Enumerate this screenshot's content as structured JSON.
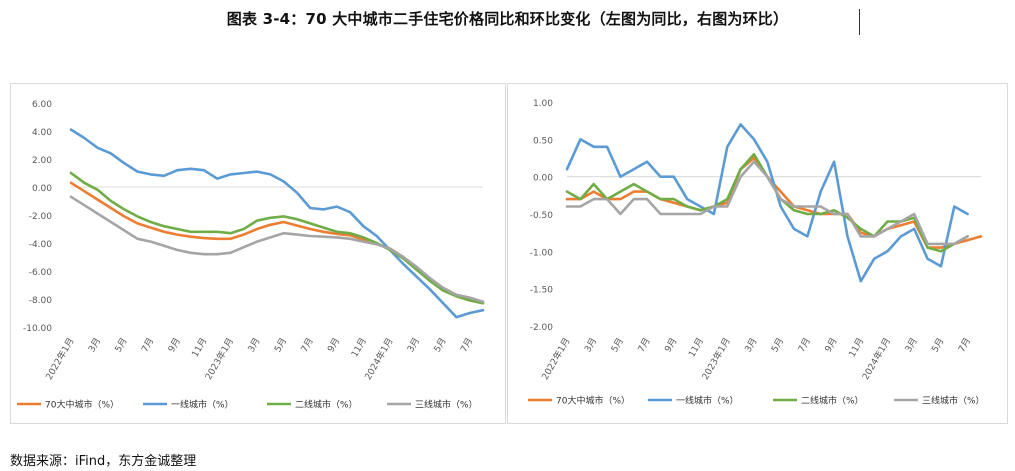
{
  "title": "图表 3-4：70 大中城市二手住宅价格同比和环比变化（左图为同比，右图为环比）",
  "source": "数据来源：iFind，东方金诚整理",
  "colors": {
    "s70": "#ed7d31",
    "s1": "#5b9bd5",
    "s2": "#70ad47",
    "s3": "#a5a5a5",
    "axis": "#d9d9d9",
    "text": "#595959"
  },
  "chart_data": [
    {
      "type": "line",
      "categories": [
        "2022年1月",
        "2022-02",
        "3月",
        "2022-04",
        "5月",
        "2022-06",
        "7月",
        "2022-08",
        "9月",
        "2022-10",
        "11月",
        "2022-12",
        "2023年1月",
        "2023-02",
        "3月",
        "2023-04",
        "5月",
        "2023-06",
        "7月",
        "2023-08",
        "9月",
        "2023-10",
        "11月",
        "2023-12",
        "2024年1月",
        "2024-02",
        "3月",
        "2024-04",
        "5月",
        "2024-06",
        "7月",
        "2024-08"
      ],
      "tick_labels": [
        "2022年1月",
        "3月",
        "5月",
        "7月",
        "9月",
        "11月",
        "2023年1月",
        "3月",
        "5月",
        "7月",
        "9月",
        "11月",
        "2024年1月",
        "3月",
        "5月",
        "7月"
      ],
      "y_tick_labels": [
        "6.00",
        "4.00",
        "2.00",
        "0.00",
        "-2.00",
        "-4.00",
        "-6.00",
        "-8.00",
        "-10.00"
      ],
      "ylim": [
        -10,
        6
      ],
      "series": [
        {
          "name": "70大中城市（%）",
          "color_key": "s70",
          "values": [
            0.3,
            -0.3,
            -0.9,
            -1.5,
            -2.1,
            -2.6,
            -2.9,
            -3.2,
            -3.4,
            -3.55,
            -3.65,
            -3.7,
            -3.7,
            -3.4,
            -3.0,
            -2.7,
            -2.5,
            -2.75,
            -3.0,
            -3.2,
            -3.35,
            -3.45,
            -3.75,
            -4.05,
            -4.4,
            -5.0,
            -5.8,
            -6.6,
            -7.3,
            -7.8,
            -8.1,
            -8.3
          ]
        },
        {
          "name": "一线城市（%）",
          "color_key": "s1",
          "values": [
            4.1,
            3.5,
            2.8,
            2.4,
            1.7,
            1.1,
            0.9,
            0.8,
            1.2,
            1.3,
            1.2,
            0.6,
            0.9,
            1.0,
            1.1,
            0.9,
            0.4,
            -0.4,
            -1.5,
            -1.6,
            -1.4,
            -1.8,
            -2.8,
            -3.5,
            -4.5,
            -5.5,
            -6.4,
            -7.3,
            -8.3,
            -9.3,
            -9.0,
            -8.8
          ]
        },
        {
          "name": "二线城市（%）",
          "color_key": "s2",
          "values": [
            1.0,
            0.3,
            -0.2,
            -1.0,
            -1.6,
            -2.1,
            -2.5,
            -2.8,
            -3.0,
            -3.2,
            -3.2,
            -3.2,
            -3.3,
            -3.0,
            -2.4,
            -2.2,
            -2.1,
            -2.3,
            -2.6,
            -2.9,
            -3.2,
            -3.3,
            -3.6,
            -4.0,
            -4.5,
            -5.1,
            -5.9,
            -6.7,
            -7.4,
            -7.8,
            -8.1,
            -8.3
          ]
        },
        {
          "name": "三线城市（%）",
          "color_key": "s3",
          "values": [
            -0.7,
            -1.3,
            -1.9,
            -2.5,
            -3.1,
            -3.7,
            -3.9,
            -4.2,
            -4.5,
            -4.7,
            -4.8,
            -4.8,
            -4.7,
            -4.3,
            -3.9,
            -3.6,
            -3.3,
            -3.4,
            -3.5,
            -3.55,
            -3.6,
            -3.7,
            -3.9,
            -4.1,
            -4.4,
            -5.0,
            -5.7,
            -6.5,
            -7.2,
            -7.7,
            -7.9,
            -8.2
          ]
        }
      ],
      "legend_position": "bottom"
    },
    {
      "type": "line",
      "categories": [
        "2022年1月",
        "2022-02",
        "3月",
        "2022-04",
        "5月",
        "2022-06",
        "7月",
        "2022-08",
        "9月",
        "2022-10",
        "11月",
        "2022-12",
        "2023年1月",
        "2023-02",
        "3月",
        "2023-04",
        "5月",
        "2023-06",
        "7月",
        "2023-08",
        "9月",
        "2023-10",
        "11月",
        "2023-12",
        "2024年1月",
        "2024-02",
        "3月",
        "2024-04",
        "5月",
        "2024-06",
        "7月",
        "2024-08"
      ],
      "tick_labels": [
        "2022年1月",
        "3月",
        "5月",
        "7月",
        "9月",
        "11月",
        "2023年1月",
        "3月",
        "5月",
        "7月",
        "9月",
        "11月",
        "2024年1月",
        "3月",
        "5月",
        "7月"
      ],
      "y_tick_labels": [
        "1.00",
        "0.50",
        "0.00",
        "-0.50",
        "-1.00",
        "-1.50",
        "-2.00"
      ],
      "ylim": [
        -2,
        1
      ],
      "series": [
        {
          "name": "70大中城市（%）",
          "color_key": "s70",
          "values": [
            -0.3,
            -0.3,
            -0.2,
            -0.3,
            -0.3,
            -0.2,
            -0.2,
            -0.3,
            -0.35,
            -0.4,
            -0.45,
            -0.4,
            -0.35,
            0.1,
            0.25,
            0.0,
            -0.2,
            -0.4,
            -0.45,
            -0.5,
            -0.5,
            -0.5,
            -0.75,
            -0.8,
            -0.7,
            -0.65,
            -0.6,
            -0.95,
            -0.95,
            -0.9,
            -0.85,
            -0.8
          ]
        },
        {
          "name": "一线城市（%）",
          "color_key": "s1",
          "values": [
            0.1,
            0.5,
            0.4,
            0.4,
            0.0,
            0.1,
            0.2,
            0.0,
            0.0,
            -0.3,
            -0.4,
            -0.5,
            0.4,
            0.7,
            0.5,
            0.2,
            -0.4,
            -0.7,
            -0.8,
            -0.2,
            0.2,
            -0.8,
            -1.4,
            -1.1,
            -1.0,
            -0.8,
            -0.7,
            -1.1,
            -1.2,
            -0.4,
            -0.5,
            null
          ]
        },
        {
          "name": "二线城市（%）",
          "color_key": "s2",
          "values": [
            -0.2,
            -0.3,
            -0.1,
            -0.3,
            -0.2,
            -0.1,
            -0.2,
            -0.3,
            -0.3,
            -0.4,
            -0.45,
            -0.4,
            -0.3,
            0.1,
            0.3,
            0.0,
            -0.3,
            -0.45,
            -0.5,
            -0.5,
            -0.45,
            -0.55,
            -0.7,
            -0.8,
            -0.6,
            -0.6,
            -0.55,
            -0.95,
            -1.0,
            -0.9,
            -0.8,
            null
          ]
        },
        {
          "name": "三线城市（%）",
          "color_key": "s3",
          "values": [
            -0.4,
            -0.4,
            -0.3,
            -0.3,
            -0.5,
            -0.3,
            -0.3,
            -0.5,
            -0.5,
            -0.5,
            -0.5,
            -0.4,
            -0.4,
            0.0,
            0.2,
            0.0,
            -0.3,
            -0.4,
            -0.4,
            -0.4,
            -0.5,
            -0.5,
            -0.8,
            -0.8,
            -0.7,
            -0.6,
            -0.5,
            -0.9,
            -0.9,
            -0.9,
            -0.8,
            null
          ]
        }
      ],
      "legend_position": "bottom"
    }
  ]
}
